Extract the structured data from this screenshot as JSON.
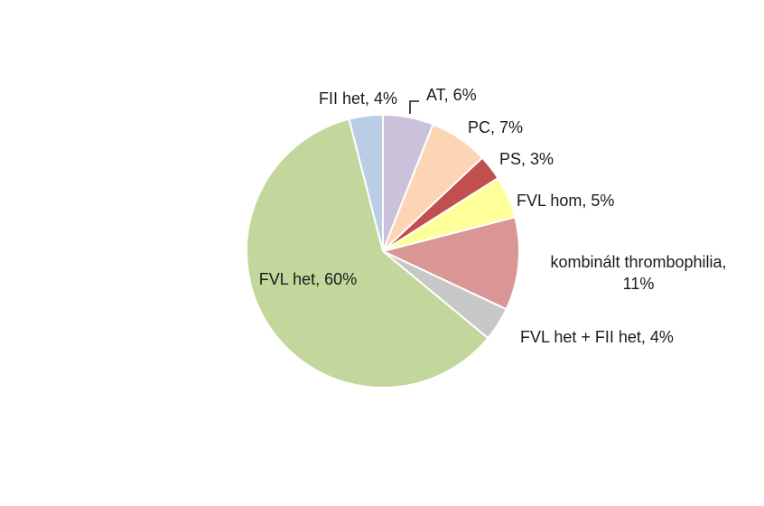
{
  "chart_data": {
    "type": "pie",
    "start_angle_deg": 0,
    "direction": "clockwise",
    "slices": [
      {
        "label": "AT",
        "value": 6,
        "data_label": "AT, 6%",
        "color": "#ccc1da"
      },
      {
        "label": "PC",
        "value": 7,
        "data_label": "PC, 7%",
        "color": "#fcd5b5"
      },
      {
        "label": "PS",
        "value": 3,
        "data_label": "PS, 3%",
        "color": "#c0504d"
      },
      {
        "label": "FVL hom",
        "value": 5,
        "data_label": "FVL hom, 5%",
        "color": "#ffff99"
      },
      {
        "label": "kombinált thrombophilia",
        "value": 11,
        "data_label": "kombinált thrombophilia,|11%",
        "color": "#d99694"
      },
      {
        "label": "FVL het + FII het",
        "value": 4,
        "data_label": "FVL het + FII het, 4%",
        "color": "#c8c8c8"
      },
      {
        "label": "FVL het",
        "value": 60,
        "data_label": "FVL het, 60%",
        "color": "#c3d69b"
      },
      {
        "label": "FII het",
        "value": 4,
        "data_label": "FII het, 4%",
        "color": "#b9cde5"
      }
    ]
  }
}
